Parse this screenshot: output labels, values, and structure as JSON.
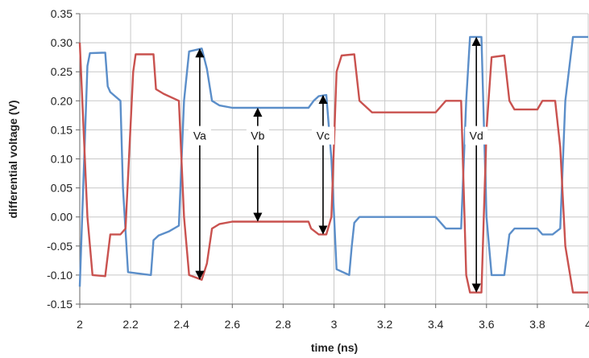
{
  "chart_data": {
    "type": "line",
    "title": "",
    "xlabel": "time (ns)",
    "ylabel": "differential voltage (V)",
    "xlim": [
      2,
      4
    ],
    "ylim": [
      -0.15,
      0.35
    ],
    "xticks": [
      2,
      2.2,
      2.4,
      2.6,
      2.8,
      3,
      3.2,
      3.4,
      3.6,
      3.8,
      4
    ],
    "xtick_labels": [
      "2",
      "2.2",
      "2.4",
      "2.6",
      "2.8",
      "3",
      "3.2",
      "3.4",
      "3.6",
      "3.8",
      "4"
    ],
    "yticks": [
      -0.15,
      -0.1,
      -0.05,
      0,
      0.05,
      0.1,
      0.15,
      0.2,
      0.25,
      0.3,
      0.35
    ],
    "ytick_labels": [
      "-0.15",
      "-0.10",
      "-0.05",
      "0.00",
      "0.05",
      "0.10",
      "0.15",
      "0.20",
      "0.25",
      "0.30",
      "0.35"
    ],
    "grid": true,
    "series": [
      {
        "color": "#5b8ec9",
        "points": [
          [
            2.0,
            -0.12
          ],
          [
            2.03,
            0.26
          ],
          [
            2.04,
            0.282
          ],
          [
            2.1,
            0.283
          ],
          [
            2.11,
            0.225
          ],
          [
            2.12,
            0.215
          ],
          [
            2.16,
            0.2
          ],
          [
            2.17,
            0.05
          ],
          [
            2.19,
            -0.095
          ],
          [
            2.28,
            -0.1
          ],
          [
            2.29,
            -0.04
          ],
          [
            2.31,
            -0.032
          ],
          [
            2.35,
            -0.025
          ],
          [
            2.39,
            -0.015
          ],
          [
            2.41,
            0.2
          ],
          [
            2.43,
            0.285
          ],
          [
            2.48,
            0.29
          ],
          [
            2.5,
            0.255
          ],
          [
            2.52,
            0.2
          ],
          [
            2.55,
            0.192
          ],
          [
            2.6,
            0.188
          ],
          [
            2.9,
            0.188
          ],
          [
            2.92,
            0.2
          ],
          [
            2.94,
            0.208
          ],
          [
            2.97,
            0.21
          ],
          [
            2.99,
            0.1
          ],
          [
            3.01,
            -0.09
          ],
          [
            3.06,
            -0.1
          ],
          [
            3.07,
            -0.05
          ],
          [
            3.08,
            -0.01
          ],
          [
            3.1,
            0.0
          ],
          [
            3.4,
            0.0
          ],
          [
            3.42,
            -0.01
          ],
          [
            3.44,
            -0.02
          ],
          [
            3.5,
            -0.02
          ],
          [
            3.52,
            0.2
          ],
          [
            3.535,
            0.31
          ],
          [
            3.58,
            0.31
          ],
          [
            3.6,
            0.0
          ],
          [
            3.62,
            -0.1
          ],
          [
            3.67,
            -0.1
          ],
          [
            3.69,
            -0.03
          ],
          [
            3.71,
            -0.02
          ],
          [
            3.8,
            -0.02
          ],
          [
            3.82,
            -0.03
          ],
          [
            3.86,
            -0.03
          ],
          [
            3.89,
            -0.02
          ],
          [
            3.91,
            0.2
          ],
          [
            3.94,
            0.31
          ],
          [
            4.0,
            0.31
          ]
        ]
      },
      {
        "color": "#c9524f",
        "points": [
          [
            2.0,
            0.3
          ],
          [
            2.03,
            0.0
          ],
          [
            2.05,
            -0.1
          ],
          [
            2.1,
            -0.102
          ],
          [
            2.12,
            -0.03
          ],
          [
            2.16,
            -0.03
          ],
          [
            2.18,
            -0.02
          ],
          [
            2.21,
            0.25
          ],
          [
            2.22,
            0.28
          ],
          [
            2.29,
            0.28
          ],
          [
            2.3,
            0.22
          ],
          [
            2.33,
            0.212
          ],
          [
            2.39,
            0.2
          ],
          [
            2.41,
            0.0
          ],
          [
            2.43,
            -0.1
          ],
          [
            2.48,
            -0.108
          ],
          [
            2.5,
            -0.08
          ],
          [
            2.52,
            -0.02
          ],
          [
            2.55,
            -0.012
          ],
          [
            2.6,
            -0.008
          ],
          [
            2.9,
            -0.008
          ],
          [
            2.91,
            -0.02
          ],
          [
            2.94,
            -0.03
          ],
          [
            2.97,
            -0.03
          ],
          [
            2.99,
            0.0
          ],
          [
            3.01,
            0.25
          ],
          [
            3.03,
            0.278
          ],
          [
            3.08,
            0.28
          ],
          [
            3.1,
            0.2
          ],
          [
            3.15,
            0.18
          ],
          [
            3.4,
            0.18
          ],
          [
            3.42,
            0.19
          ],
          [
            3.44,
            0.2
          ],
          [
            3.5,
            0.2
          ],
          [
            3.52,
            -0.1
          ],
          [
            3.535,
            -0.13
          ],
          [
            3.58,
            -0.13
          ],
          [
            3.6,
            0.15
          ],
          [
            3.62,
            0.275
          ],
          [
            3.67,
            0.278
          ],
          [
            3.69,
            0.2
          ],
          [
            3.71,
            0.185
          ],
          [
            3.8,
            0.185
          ],
          [
            3.82,
            0.2
          ],
          [
            3.87,
            0.2
          ],
          [
            3.89,
            0.12
          ],
          [
            3.91,
            -0.05
          ],
          [
            3.94,
            -0.13
          ],
          [
            4.0,
            -0.13
          ]
        ]
      }
    ],
    "annotations": [
      {
        "label": "Va",
        "x": 2.472,
        "y_top": 0.29,
        "y_bottom": -0.108,
        "label_y": 0.14
      },
      {
        "label": "Vb",
        "x": 2.7,
        "y_top": 0.188,
        "y_bottom": -0.008,
        "label_y": 0.14
      },
      {
        "label": "Vc",
        "x": 2.957,
        "y_top": 0.21,
        "y_bottom": -0.03,
        "label_y": 0.14
      },
      {
        "label": "Vd",
        "x": 3.56,
        "y_top": 0.31,
        "y_bottom": -0.13,
        "label_y": 0.14
      }
    ]
  }
}
